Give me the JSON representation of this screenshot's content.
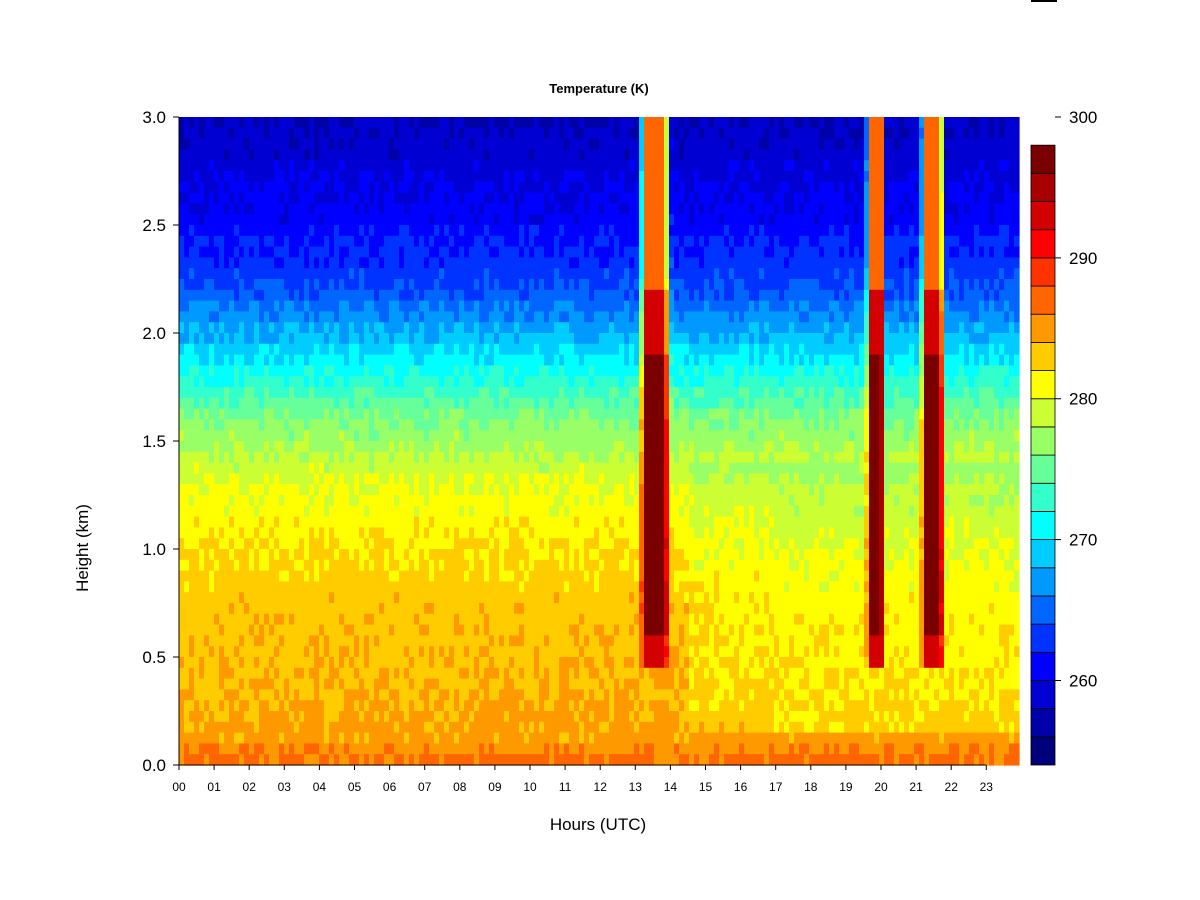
{
  "chart_data": {
    "type": "heatmap",
    "title": "Temperature (K)",
    "xlabel": "Hours (UTC)",
    "ylabel": "Height (km)",
    "x_range": [
      0,
      23.9
    ],
    "y_range": [
      0.0,
      3.0
    ],
    "x_ticks": [
      "00",
      "01",
      "02",
      "03",
      "04",
      "05",
      "06",
      "07",
      "08",
      "09",
      "10",
      "11",
      "12",
      "13",
      "14",
      "15",
      "16",
      "17",
      "18",
      "19",
      "20",
      "21",
      "22",
      "23"
    ],
    "y_ticks": [
      "0.0",
      "0.5",
      "1.0",
      "1.5",
      "2.0",
      "2.5",
      "3.0"
    ],
    "colorbar": {
      "min": 254,
      "max": 300,
      "step": 2,
      "tick_labels": [
        "260",
        "270",
        "280",
        "290",
        "300"
      ],
      "tick_values": [
        260,
        270,
        280,
        290,
        300
      ],
      "colors": [
        "#00007a",
        "#0000a8",
        "#0000d2",
        "#0000ff",
        "#0033ff",
        "#0066ff",
        "#0099ff",
        "#00ccff",
        "#00ffff",
        "#33ffcc",
        "#66ff99",
        "#99ff66",
        "#ccff33",
        "#ffff00",
        "#ffcc00",
        "#ff9900",
        "#ff6600",
        "#ff3300",
        "#ff0000",
        "#d20000",
        "#a80000",
        "#7a0000"
      ]
    },
    "background_profile": {
      "heights_km": [
        0.0,
        0.1,
        0.3,
        0.5,
        0.8,
        1.0,
        1.3,
        1.6,
        1.8,
        2.0,
        2.2,
        2.5,
        2.8,
        3.0
      ],
      "temperature_K": [
        287,
        285,
        284,
        283.5,
        283,
        282,
        280,
        276,
        272,
        268,
        264,
        261,
        259,
        258
      ]
    },
    "warm_bands": [
      {
        "start_hour": 13.2,
        "end_hour": 13.9,
        "peak_K": 296
      },
      {
        "start_hour": 19.65,
        "end_hour": 20.0,
        "peak_K": 296
      },
      {
        "start_hour": 21.2,
        "end_hour": 21.7,
        "peak_K": 296
      }
    ]
  }
}
